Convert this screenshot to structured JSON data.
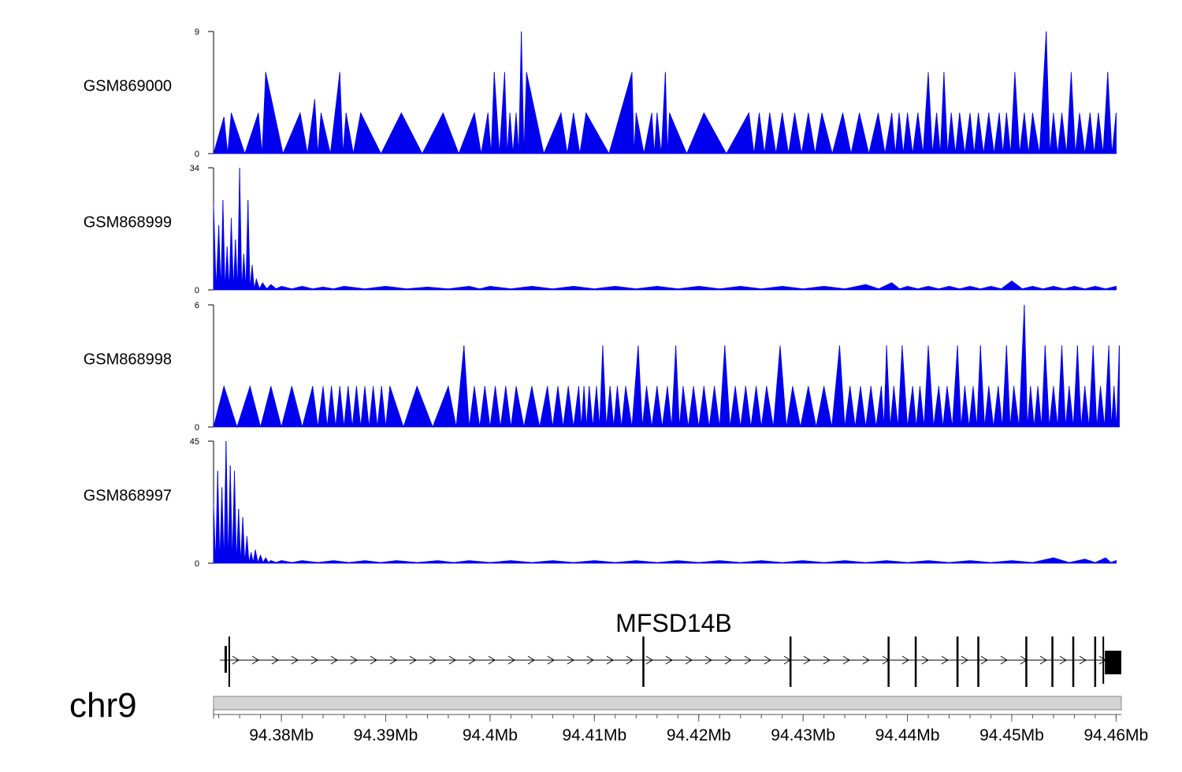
{
  "chart_data": {
    "type": "area",
    "genome": {
      "chromosome": "chr9",
      "xlim_mb": [
        94.3735,
        94.4605
      ],
      "xticks_mb": [
        94.38,
        94.39,
        94.4,
        94.41,
        94.42,
        94.43,
        94.44,
        94.45,
        94.46
      ],
      "xtick_labels": [
        "94.38Mb",
        "94.39Mb",
        "94.4Mb",
        "94.41Mb",
        "94.42Mb",
        "94.43Mb",
        "94.44Mb",
        "94.45Mb",
        "94.46Mb"
      ]
    },
    "tracks": [
      {
        "name": "GSM869000",
        "ylim": [
          0,
          9
        ],
        "ytick_labels": [
          "0",
          "9"
        ],
        "color": "#0000ee",
        "baseline": 0,
        "peaks": [
          [
            94.3745,
            2.7
          ],
          [
            94.3752,
            3.0
          ],
          [
            94.3778,
            3.0
          ],
          [
            94.3785,
            6.0
          ],
          [
            94.3818,
            3.0
          ],
          [
            94.3832,
            4.0
          ],
          [
            94.3838,
            3.0
          ],
          [
            94.3856,
            6.0
          ],
          [
            94.3862,
            3.0
          ],
          [
            94.3876,
            3.0
          ],
          [
            94.3915,
            3.0
          ],
          [
            94.3955,
            3.0
          ],
          [
            94.3985,
            3.0
          ],
          [
            94.3998,
            3.0
          ],
          [
            94.4004,
            6.0
          ],
          [
            94.4014,
            6.0
          ],
          [
            94.4019,
            3.0
          ],
          [
            94.4025,
            3.0
          ],
          [
            94.403,
            9.0
          ],
          [
            94.4035,
            6.0
          ],
          [
            94.4068,
            3.0
          ],
          [
            94.408,
            3.0
          ],
          [
            94.4092,
            3.0
          ],
          [
            94.4136,
            6.0
          ],
          [
            94.414,
            3.0
          ],
          [
            94.4155,
            3.0
          ],
          [
            94.416,
            3.0
          ],
          [
            94.4168,
            6.0
          ],
          [
            94.4172,
            3.0
          ],
          [
            94.4205,
            3.0
          ],
          [
            94.4248,
            3.0
          ],
          [
            94.4258,
            3.0
          ],
          [
            94.4268,
            3.0
          ],
          [
            94.428,
            3.0
          ],
          [
            94.4292,
            3.0
          ],
          [
            94.4305,
            3.0
          ],
          [
            94.4318,
            3.0
          ],
          [
            94.4338,
            3.0
          ],
          [
            94.4354,
            3.0
          ],
          [
            94.4372,
            3.0
          ],
          [
            94.4385,
            3.0
          ],
          [
            94.4392,
            3.0
          ],
          [
            94.44,
            3.0
          ],
          [
            94.441,
            3.0
          ],
          [
            94.442,
            6.0
          ],
          [
            94.4428,
            3.0
          ],
          [
            94.4435,
            6.0
          ],
          [
            94.4442,
            3.0
          ],
          [
            94.445,
            3.0
          ],
          [
            94.446,
            3.0
          ],
          [
            94.4468,
            3.0
          ],
          [
            94.4478,
            3.0
          ],
          [
            94.4488,
            3.0
          ],
          [
            94.4495,
            3.0
          ],
          [
            94.4503,
            6.0
          ],
          [
            94.4512,
            3.0
          ],
          [
            94.452,
            3.0
          ],
          [
            94.4533,
            9.0
          ],
          [
            94.454,
            3.0
          ],
          [
            94.4548,
            3.0
          ],
          [
            94.4557,
            6.0
          ],
          [
            94.4565,
            3.0
          ],
          [
            94.4575,
            3.0
          ],
          [
            94.4583,
            3.0
          ],
          [
            94.4592,
            6.0
          ],
          [
            94.46,
            3.0
          ]
        ]
      },
      {
        "name": "GSM868999",
        "ylim": [
          0,
          34
        ],
        "ytick_labels": [
          "0",
          "34"
        ],
        "color": "#0000ee",
        "baseline": 0.3,
        "peaks": [
          [
            94.3735,
            24.0
          ],
          [
            94.374,
            18.0
          ],
          [
            94.3744,
            25.0
          ],
          [
            94.3748,
            12.0
          ],
          [
            94.3752,
            20.0
          ],
          [
            94.3756,
            14.0
          ],
          [
            94.376,
            34.0
          ],
          [
            94.3764,
            10.0
          ],
          [
            94.3768,
            25.0
          ],
          [
            94.3772,
            7.0
          ],
          [
            94.3776,
            3.0
          ],
          [
            94.3782,
            2.0
          ],
          [
            94.379,
            1.5
          ],
          [
            94.38,
            1.0
          ],
          [
            94.382,
            1.0
          ],
          [
            94.384,
            0.8
          ],
          [
            94.386,
            1.0
          ],
          [
            94.39,
            1.0
          ],
          [
            94.394,
            0.8
          ],
          [
            94.398,
            1.0
          ],
          [
            94.4,
            1.0
          ],
          [
            94.404,
            1.0
          ],
          [
            94.408,
            1.0
          ],
          [
            94.412,
            1.0
          ],
          [
            94.416,
            1.0
          ],
          [
            94.42,
            1.0
          ],
          [
            94.424,
            1.0
          ],
          [
            94.428,
            1.0
          ],
          [
            94.432,
            1.0
          ],
          [
            94.436,
            1.5
          ],
          [
            94.4385,
            2.0
          ],
          [
            94.44,
            1.0
          ],
          [
            94.442,
            1.0
          ],
          [
            94.444,
            1.0
          ],
          [
            94.446,
            1.0
          ],
          [
            94.448,
            1.0
          ],
          [
            94.45,
            2.5
          ],
          [
            94.452,
            1.0
          ],
          [
            94.454,
            1.0
          ],
          [
            94.456,
            1.0
          ],
          [
            94.458,
            1.0
          ],
          [
            94.46,
            1.0
          ]
        ]
      },
      {
        "name": "GSM868998",
        "ylim": [
          0,
          6
        ],
        "ytick_labels": [
          "0",
          "6"
        ],
        "color": "#0000ee",
        "baseline": 0,
        "peaks": [
          [
            94.3745,
            2.0
          ],
          [
            94.377,
            2.0
          ],
          [
            94.379,
            2.0
          ],
          [
            94.381,
            2.0
          ],
          [
            94.383,
            2.0
          ],
          [
            94.384,
            2.0
          ],
          [
            94.3848,
            2.0
          ],
          [
            94.3856,
            2.0
          ],
          [
            94.3864,
            2.0
          ],
          [
            94.3872,
            2.0
          ],
          [
            94.388,
            2.0
          ],
          [
            94.3888,
            2.0
          ],
          [
            94.3896,
            2.0
          ],
          [
            94.3904,
            2.0
          ],
          [
            94.393,
            2.0
          ],
          [
            94.396,
            2.0
          ],
          [
            94.3975,
            4.0
          ],
          [
            94.3985,
            2.0
          ],
          [
            94.3995,
            2.0
          ],
          [
            94.4005,
            2.0
          ],
          [
            94.4015,
            2.0
          ],
          [
            94.4025,
            2.0
          ],
          [
            94.404,
            2.0
          ],
          [
            94.4055,
            2.0
          ],
          [
            94.4065,
            2.0
          ],
          [
            94.4075,
            2.0
          ],
          [
            94.4085,
            2.0
          ],
          [
            94.409,
            2.0
          ],
          [
            94.4095,
            2.0
          ],
          [
            94.4102,
            2.0
          ],
          [
            94.4108,
            4.0
          ],
          [
            94.4115,
            2.0
          ],
          [
            94.4122,
            2.0
          ],
          [
            94.413,
            2.0
          ],
          [
            94.4142,
            4.0
          ],
          [
            94.415,
            2.0
          ],
          [
            94.416,
            2.0
          ],
          [
            94.417,
            2.0
          ],
          [
            94.4178,
            4.0
          ],
          [
            94.4185,
            2.0
          ],
          [
            94.4195,
            2.0
          ],
          [
            94.4205,
            2.0
          ],
          [
            94.4215,
            2.0
          ],
          [
            94.4225,
            4.0
          ],
          [
            94.4235,
            2.0
          ],
          [
            94.4245,
            2.0
          ],
          [
            94.4255,
            2.0
          ],
          [
            94.4265,
            2.0
          ],
          [
            94.4278,
            4.0
          ],
          [
            94.429,
            2.0
          ],
          [
            94.4305,
            2.0
          ],
          [
            94.432,
            2.0
          ],
          [
            94.4335,
            4.0
          ],
          [
            94.4345,
            2.0
          ],
          [
            94.4355,
            2.0
          ],
          [
            94.4365,
            2.0
          ],
          [
            94.4375,
            2.0
          ],
          [
            94.438,
            4.0
          ],
          [
            94.4387,
            2.0
          ],
          [
            94.4395,
            4.0
          ],
          [
            94.4405,
            2.0
          ],
          [
            94.4412,
            2.0
          ],
          [
            94.442,
            4.0
          ],
          [
            94.443,
            2.0
          ],
          [
            94.4438,
            2.0
          ],
          [
            94.4448,
            4.0
          ],
          [
            94.4455,
            2.0
          ],
          [
            94.4463,
            2.0
          ],
          [
            94.447,
            4.0
          ],
          [
            94.4478,
            2.0
          ],
          [
            94.4487,
            2.0
          ],
          [
            94.4495,
            4.0
          ],
          [
            94.4502,
            2.0
          ],
          [
            94.4512,
            6.0
          ],
          [
            94.4518,
            2.0
          ],
          [
            94.4525,
            2.0
          ],
          [
            94.4532,
            4.0
          ],
          [
            94.454,
            2.0
          ],
          [
            94.4548,
            4.0
          ],
          [
            94.4555,
            2.0
          ],
          [
            94.4563,
            4.0
          ],
          [
            94.457,
            2.0
          ],
          [
            94.4578,
            4.0
          ],
          [
            94.4585,
            2.0
          ],
          [
            94.4593,
            4.0
          ],
          [
            94.4598,
            2.0
          ],
          [
            94.4603,
            4.0
          ]
        ]
      },
      {
        "name": "GSM868997",
        "ylim": [
          0,
          45
        ],
        "ytick_labels": [
          "0",
          "45"
        ],
        "color": "#0000ee",
        "baseline": 0.3,
        "peaks": [
          [
            94.3735,
            22.0
          ],
          [
            94.3739,
            34.0
          ],
          [
            94.3743,
            28.0
          ],
          [
            94.3747,
            45.0
          ],
          [
            94.3751,
            36.0
          ],
          [
            94.3755,
            34.0
          ],
          [
            94.3759,
            20.0
          ],
          [
            94.3763,
            17.0
          ],
          [
            94.3767,
            10.0
          ],
          [
            94.3771,
            4.0
          ],
          [
            94.3775,
            5.0
          ],
          [
            94.378,
            3.0
          ],
          [
            94.3785,
            2.0
          ],
          [
            94.379,
            1.0
          ],
          [
            94.38,
            1.0
          ],
          [
            94.382,
            1.0
          ],
          [
            94.385,
            1.0
          ],
          [
            94.388,
            1.0
          ],
          [
            94.391,
            1.0
          ],
          [
            94.395,
            1.0
          ],
          [
            94.398,
            1.0
          ],
          [
            94.402,
            1.0
          ],
          [
            94.406,
            1.0
          ],
          [
            94.41,
            1.0
          ],
          [
            94.414,
            1.0
          ],
          [
            94.418,
            1.0
          ],
          [
            94.422,
            1.0
          ],
          [
            94.426,
            1.0
          ],
          [
            94.43,
            1.0
          ],
          [
            94.434,
            1.0
          ],
          [
            94.438,
            1.0
          ],
          [
            94.442,
            1.0
          ],
          [
            94.446,
            1.0
          ],
          [
            94.45,
            1.0
          ],
          [
            94.454,
            2.0
          ],
          [
            94.457,
            1.5
          ],
          [
            94.459,
            2.0
          ],
          [
            94.46,
            1.0
          ]
        ]
      }
    ],
    "gene": {
      "name": "MFSD14B",
      "strand": "+",
      "start_mb": 94.3741,
      "end_mb": 94.4605,
      "exons_mb": [
        [
          94.3741,
          94.3745
        ],
        [
          94.4146,
          94.4147
        ],
        [
          94.4287,
          94.4288
        ],
        [
          94.4381,
          94.4382
        ],
        [
          94.4407,
          94.4408
        ],
        [
          94.4447,
          94.4449
        ],
        [
          94.4467,
          94.4468
        ],
        [
          94.4513,
          94.4514
        ],
        [
          94.4538,
          94.4539
        ],
        [
          94.4558,
          94.4559
        ],
        [
          94.4579,
          94.458
        ],
        [
          94.4587,
          94.4605
        ]
      ]
    }
  }
}
